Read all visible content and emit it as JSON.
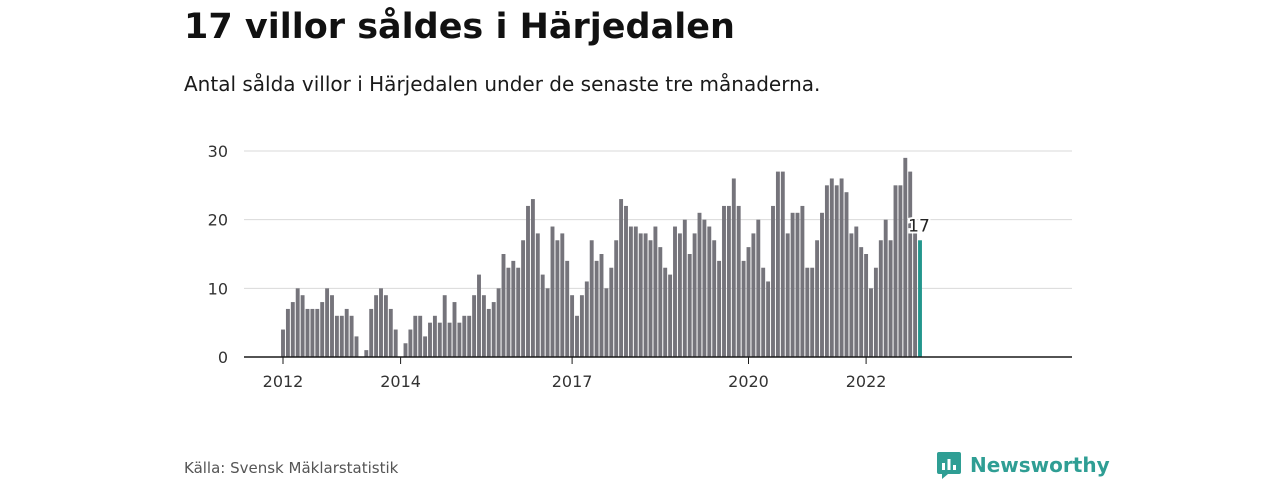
{
  "title": "17 villor såldes i Härjedalen",
  "subtitle": "Antal sålda villor i Härjedalen under de senaste tre månaderna.",
  "source": "Källa: Svensk Mäklarstatistik",
  "brand": {
    "name": "Newsworthy",
    "icon": "newsworthy-logo-icon"
  },
  "colors": {
    "bar": "#75747b",
    "highlight": "#23968d",
    "grid": "#d9d9d9",
    "axis": "#1a1a1a",
    "brand": "#2f9e94"
  },
  "chart_data": {
    "type": "bar",
    "title": "",
    "xlabel": "",
    "ylabel": "",
    "ylim": [
      0,
      30
    ],
    "yticks": [
      0,
      10,
      20,
      30
    ],
    "grid": true,
    "x_start": "2011-12",
    "xtick_labels": [
      {
        "label": "2012",
        "month_index": 1
      },
      {
        "label": "2014",
        "month_index": 25
      },
      {
        "label": "2017",
        "month_index": 60
      },
      {
        "label": "2020",
        "month_index": 96
      },
      {
        "label": "2022",
        "month_index": 120
      }
    ],
    "values": [
      4,
      7,
      8,
      10,
      9,
      7,
      7,
      7,
      8,
      10,
      9,
      6,
      6,
      7,
      6,
      3,
      0,
      1,
      7,
      9,
      10,
      9,
      7,
      4,
      0,
      2,
      4,
      6,
      6,
      3,
      5,
      6,
      5,
      9,
      5,
      8,
      5,
      6,
      6,
      9,
      12,
      9,
      7,
      8,
      10,
      15,
      13,
      14,
      13,
      17,
      22,
      23,
      18,
      12,
      10,
      19,
      17,
      18,
      14,
      9,
      6,
      9,
      11,
      17,
      14,
      15,
      10,
      13,
      17,
      23,
      22,
      19,
      19,
      18,
      18,
      17,
      19,
      16,
      13,
      12,
      19,
      18,
      20,
      15,
      18,
      21,
      20,
      19,
      17,
      14,
      22,
      22,
      26,
      22,
      14,
      16,
      18,
      20,
      13,
      11,
      22,
      27,
      27,
      18,
      21,
      21,
      22,
      13,
      13,
      17,
      21,
      25,
      26,
      25,
      26,
      24,
      18,
      19,
      16,
      15,
      10,
      13,
      17,
      20,
      17,
      25,
      25,
      29,
      27,
      18,
      17
    ],
    "highlight_index": 130,
    "highlight_label": "17"
  }
}
